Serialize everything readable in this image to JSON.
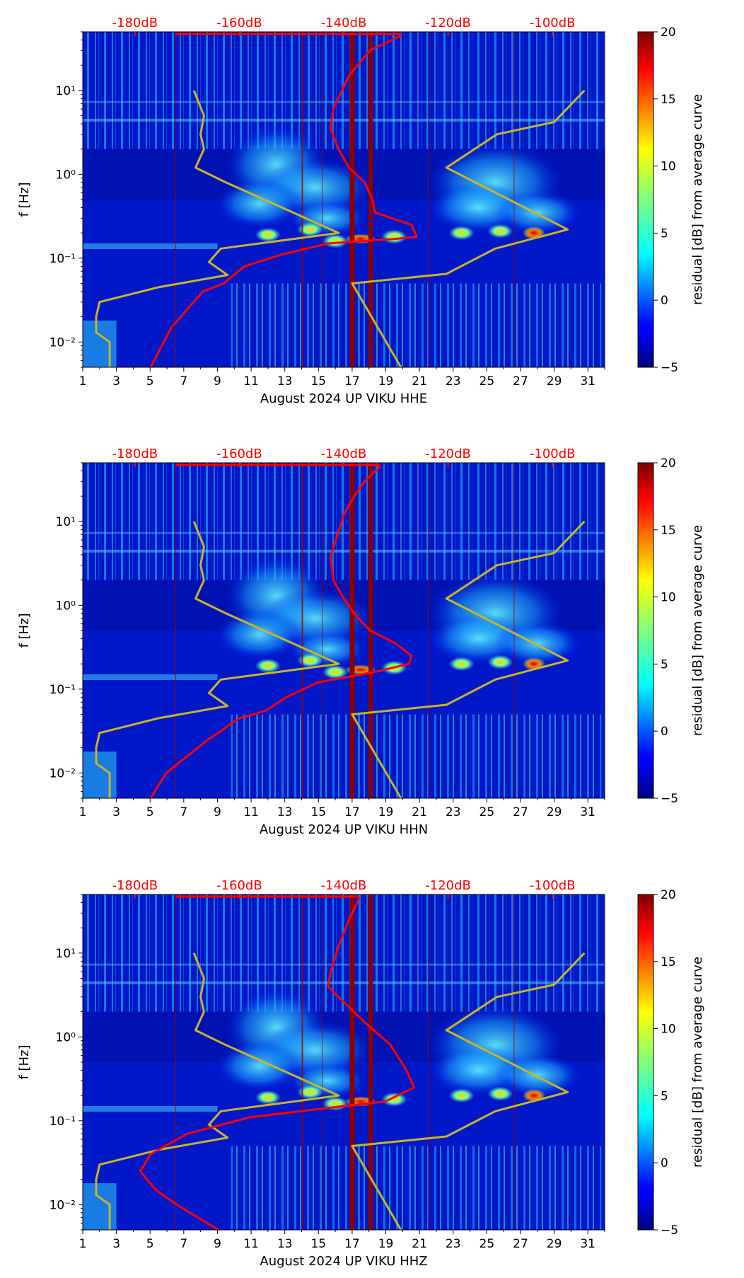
{
  "chart_data": [
    {
      "type": "heatmap",
      "panel": "HHE",
      "xlabel": "August 2024 UP VIKU  HHE",
      "ylabel": "f [Hz]",
      "xlim": [
        1,
        32
      ],
      "xticks": [
        "1",
        "3",
        "5",
        "7",
        "9",
        "11",
        "13",
        "15",
        "17",
        "19",
        "21",
        "23",
        "25",
        "27",
        "29",
        "31"
      ],
      "ylim": [
        0.005,
        50
      ],
      "yticks": [
        {
          "value": 0.01,
          "label": "10⁻²"
        },
        {
          "value": 0.1,
          "label": "10⁻¹"
        },
        {
          "value": 1,
          "label": "10⁰"
        },
        {
          "value": 10,
          "label": "10¹"
        }
      ],
      "top_axis": {
        "color": "#ff0000",
        "labels": [
          "-180dB",
          "-160dB",
          "-140dB",
          "-120dB",
          "-100dB"
        ],
        "values": [
          -180,
          -160,
          -140,
          -120,
          -100
        ],
        "range": [
          -190,
          -90
        ]
      },
      "colorbar": {
        "label": "residual [dB] from average curve",
        "ticks": [
          "−5",
          "0",
          "5",
          "10",
          "15",
          "20"
        ],
        "min": -5,
        "max": 20,
        "colormap": "jet"
      },
      "series": [
        {
          "name": "noise model curves",
          "color": "#c8b42a",
          "x": [
            7.6,
            8.2,
            8.0,
            8.2,
            7.7,
            9.5,
            16.2,
            9.2,
            8.5,
            9.6,
            5.5,
            2.0,
            1.8,
            1.8,
            2.6,
            2.6,
            null,
            30.8,
            29.0,
            25.6,
            22.6,
            29.8,
            25.5,
            22.6,
            17.0,
            19.9
          ],
          "y": [
            10,
            5,
            3,
            2,
            1.2,
            0.8,
            0.2,
            0.13,
            0.09,
            0.063,
            0.045,
            0.03,
            0.02,
            0.013,
            0.01,
            0.005,
            null,
            10,
            4.2,
            3,
            1.2,
            0.22,
            0.13,
            0.065,
            0.05,
            0.005
          ]
        },
        {
          "name": "average PSD (dB)",
          "color": "#ff0000",
          "x": [
            -129,
            -135,
            -139,
            -142,
            -142.5,
            -141,
            -139,
            -136,
            -134.5,
            -134,
            -127,
            -126,
            -130,
            -143,
            -152,
            -159,
            -163,
            -167,
            -173,
            -177
          ],
          "y": [
            45,
            30,
            15,
            6,
            3.5,
            2,
            1.2,
            0.8,
            0.5,
            0.35,
            0.25,
            0.18,
            0.17,
            0.15,
            0.11,
            0.08,
            0.05,
            0.04,
            0.015,
            0.005
          ]
        }
      ]
    },
    {
      "type": "heatmap",
      "panel": "HHN",
      "xlabel": "August 2024 UP VIKU  HHN",
      "ylabel": "f [Hz]",
      "xlim": [
        1,
        32
      ],
      "xticks": [
        "1",
        "3",
        "5",
        "7",
        "9",
        "11",
        "13",
        "15",
        "17",
        "19",
        "21",
        "23",
        "25",
        "27",
        "29",
        "31"
      ],
      "ylim": [
        0.005,
        50
      ],
      "yticks": [
        {
          "value": 0.01,
          "label": "10⁻²"
        },
        {
          "value": 0.1,
          "label": "10⁻¹"
        },
        {
          "value": 1,
          "label": "10⁰"
        },
        {
          "value": 10,
          "label": "10¹"
        }
      ],
      "top_axis": {
        "color": "#ff0000",
        "labels": [
          "-180dB",
          "-160dB",
          "-140dB",
          "-120dB",
          "-100dB"
        ],
        "values": [
          -180,
          -160,
          -140,
          -120,
          -100
        ],
        "range": [
          -190,
          -90
        ]
      },
      "colorbar": {
        "label": "residual [dB] from average curve",
        "ticks": [
          "−5",
          "0",
          "5",
          "10",
          "15",
          "20"
        ],
        "min": -5,
        "max": 20,
        "colormap": "jet"
      },
      "series": [
        {
          "name": "noise model curves",
          "color": "#c8b42a",
          "x": [
            7.6,
            8.2,
            8.0,
            8.2,
            7.7,
            9.5,
            16.2,
            9.2,
            8.5,
            9.6,
            5.5,
            2.0,
            1.8,
            1.8,
            2.6,
            2.6,
            null,
            30.8,
            29.0,
            25.6,
            22.6,
            29.8,
            25.5,
            22.6,
            17.0,
            19.9
          ],
          "y": [
            10,
            5,
            3,
            2,
            1.2,
            0.8,
            0.2,
            0.13,
            0.09,
            0.063,
            0.045,
            0.03,
            0.02,
            0.013,
            0.01,
            0.005,
            null,
            10,
            4.2,
            3,
            1.2,
            0.22,
            0.13,
            0.065,
            0.05,
            0.005
          ]
        },
        {
          "name": "average PSD (dB)",
          "color": "#ff0000",
          "x": [
            -133,
            -136,
            -138,
            -140,
            -141.5,
            -142.5,
            -142,
            -140,
            -138,
            -135,
            -130,
            -127,
            -127.5,
            -134,
            -145,
            -151,
            -155,
            -160,
            -166,
            -174,
            -177
          ],
          "y": [
            45,
            30,
            20,
            12,
            6,
            3.8,
            2,
            1.2,
            0.8,
            0.5,
            0.35,
            0.25,
            0.2,
            0.16,
            0.12,
            0.08,
            0.055,
            0.045,
            0.025,
            0.01,
            0.005
          ]
        }
      ]
    },
    {
      "type": "heatmap",
      "panel": "HHZ",
      "xlabel": "August 2024 UP VIKU  HHZ",
      "ylabel": "f [Hz]",
      "xlim": [
        1,
        32
      ],
      "xticks": [
        "1",
        "3",
        "5",
        "7",
        "9",
        "11",
        "13",
        "15",
        "17",
        "19",
        "21",
        "23",
        "25",
        "27",
        "29",
        "31"
      ],
      "ylim": [
        0.005,
        50
      ],
      "yticks": [
        {
          "value": 0.01,
          "label": "10⁻²"
        },
        {
          "value": 0.1,
          "label": "10⁻¹"
        },
        {
          "value": 1,
          "label": "10⁰"
        },
        {
          "value": 10,
          "label": "10¹"
        }
      ],
      "top_axis": {
        "color": "#ff0000",
        "labels": [
          "-180dB",
          "-160dB",
          "-140dB",
          "-120dB",
          "-100dB"
        ],
        "values": [
          -180,
          -160,
          -140,
          -120,
          -100
        ],
        "range": [
          -190,
          -90
        ]
      },
      "colorbar": {
        "label": "residual [dB] from average curve",
        "ticks": [
          "−5",
          "0",
          "5",
          "10",
          "15",
          "20"
        ],
        "min": -5,
        "max": 20,
        "colormap": "jet"
      },
      "series": [
        {
          "name": "noise model curves",
          "color": "#c8b42a",
          "x": [
            7.6,
            8.2,
            8.0,
            8.2,
            7.7,
            9.5,
            16.2,
            9.2,
            8.5,
            9.6,
            5.5,
            2.0,
            1.8,
            1.8,
            2.6,
            2.6,
            null,
            30.8,
            29.0,
            25.6,
            22.6,
            29.8,
            25.5,
            22.6,
            17.0,
            19.9
          ],
          "y": [
            10,
            5,
            3,
            2,
            1.2,
            0.8,
            0.2,
            0.13,
            0.09,
            0.063,
            0.045,
            0.03,
            0.02,
            0.013,
            0.01,
            0.005,
            null,
            10,
            4.2,
            3,
            1.2,
            0.22,
            0.13,
            0.065,
            0.05,
            0.005
          ]
        },
        {
          "name": "average PSD (dB)",
          "color": "#ff0000",
          "x": [
            -137,
            -139,
            -141,
            -142.5,
            -143,
            -141,
            -136,
            -131,
            -128,
            -126.5,
            -132,
            -144,
            -158,
            -170,
            -177,
            -179,
            -176,
            -172,
            -164
          ],
          "y": [
            45,
            25,
            12,
            6,
            4,
            3,
            1.5,
            0.8,
            0.4,
            0.25,
            0.17,
            0.14,
            0.11,
            0.07,
            0.04,
            0.025,
            0.015,
            0.01,
            0.005
          ]
        }
      ]
    }
  ]
}
